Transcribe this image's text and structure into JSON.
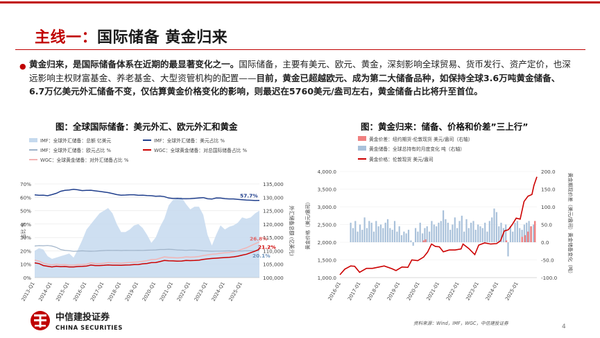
{
  "slide": {
    "title_accent": "主线一：",
    "title_rest": "国际储备  黄金归来",
    "page_number": "4",
    "brand_cn": "中信建投证券",
    "brand_en": "CHINA SECURITIES",
    "source_note": "资料来源：Wind，IMF，WGC，中信建投证券"
  },
  "bullet": {
    "bold1": "黄金归来，是国际储备体系在近期的最显著变化之一。",
    "normal1": "国际储备，主要有美元、欧元、黄金，深刻影响全球贸易、货币发行、资产定价，也深远影响主权财富基金、养老基金、大型资管机构的配置——",
    "bold2": "目前，黄金已超越欧元、成为第二大储备品种，如保持全球3.6万吨黄金储备、6.7万亿美元外汇储备不变，仅估算黄金价格变化的影响，则最迟在5760美元/盎司左右，黄金储备占比将升至首位。"
  },
  "chart_data": [
    {
      "type": "line",
      "title": "图：全球国际储备：美元外汇、欧元外汇和黄金",
      "legend": [
        "IMF：全球外汇储备：总额 亿美元",
        "IMF：全球外汇储备：美元占比 %",
        "IMF：全球外汇储备：欧元占比 %",
        "WGC：全球黄金储备：对总国际储备占比 %",
        "WGC：全球黄金储备：对外汇储备占比 %"
      ],
      "x_ticks": [
        "2013-Q1",
        "2014-Q1",
        "2015-Q1",
        "2016-Q1",
        "2017-Q1",
        "2018-Q1",
        "2019-Q1",
        "2020-Q1",
        "2021-Q1",
        "2022-Q1",
        "2023-Q1",
        "2024-Q1",
        "2025-Q1"
      ],
      "ylabel_left": "占比 %",
      "ylabel_right": "外汇储备总额 (亿美元)",
      "ylim_left": [
        0,
        70
      ],
      "ylim_right": [
        100000,
        135000
      ],
      "yticks_left": [
        "0%",
        "10%",
        "20%",
        "30%",
        "40%",
        "50%",
        "60%",
        "70%"
      ],
      "yticks_right": [
        "100,000",
        "105,000",
        "110,000",
        "115,000",
        "120,000",
        "125,000",
        "130,000",
        "135,000"
      ],
      "annotations": [
        "57.7%",
        "26.8%",
        "21.2%",
        "20.1%"
      ],
      "series": [
        {
          "name": "IMF：全球外汇储备：总额 亿美元",
          "axis": "right",
          "color": "#c5d9ee",
          "values": [
            110000,
            111000,
            110500,
            108000,
            107000,
            107500,
            108000,
            108500,
            109000,
            107500,
            110500,
            114000,
            118000,
            120000,
            122000,
            124000,
            125000,
            126000,
            124000,
            120000,
            117000,
            117000,
            118000,
            119500,
            120000,
            118500,
            116000,
            113000,
            115000,
            119000,
            122000,
            127000,
            129000,
            129500,
            130000,
            127500,
            125500,
            126500,
            126500,
            123500,
            116000,
            112000,
            116000,
            119500,
            118000,
            119000,
            119500,
            120500,
            122500,
            122000,
            122500,
            124000,
            125000
          ]
        },
        {
          "name": "IMF：全球外汇储备：美元占比 %",
          "axis": "left",
          "color": "#1f3e8c",
          "values": [
            61.8,
            61.5,
            61.6,
            61.2,
            62.0,
            63.0,
            64.5,
            65.2,
            65.5,
            66.0,
            65.6,
            65.0,
            65.2,
            65.3,
            64.8,
            64.4,
            64.0,
            63.5,
            62.8,
            62.0,
            61.6,
            61.7,
            61.9,
            61.9,
            61.5,
            61.6,
            61.3,
            61.2,
            60.8,
            60.9,
            60.5,
            59.5,
            59.1,
            59.2,
            59.0,
            58.9,
            59.0,
            59.2,
            59.5,
            59.8,
            58.9,
            58.7,
            59.5,
            59.4,
            59.0,
            58.8,
            58.8,
            58.5,
            58.2,
            57.9,
            57.8,
            57.6,
            57.7
          ]
        },
        {
          "name": "IMF：全球外汇储备：欧元占比 %",
          "axis": "left",
          "color": "#9fb3c9",
          "values": [
            23.6,
            23.9,
            23.8,
            24.0,
            23.6,
            22.6,
            21.0,
            20.4,
            20.1,
            19.6,
            19.8,
            20.0,
            19.8,
            19.7,
            19.8,
            20.0,
            20.2,
            20.4,
            20.3,
            20.4,
            20.2,
            20.4,
            20.3,
            20.3,
            20.4,
            20.3,
            20.5,
            20.6,
            20.7,
            21.0,
            21.0,
            21.2,
            21.0,
            20.7,
            20.6,
            20.4,
            20.6,
            20.6,
            20.3,
            20.0,
            19.9,
            19.7,
            19.8,
            19.8,
            19.9,
            20.0,
            19.9,
            19.8,
            19.9,
            20.1,
            20.0,
            20.1,
            20.1
          ]
        },
        {
          "name": "WGC：全球黄金储备：对总国际储备占比 %",
          "axis": "left",
          "color": "#cc0000",
          "values": [
            11.0,
            10.5,
            9.0,
            8.5,
            8.0,
            8.5,
            8.2,
            8.3,
            8.0,
            8.0,
            8.3,
            8.4,
            8.6,
            9.4,
            9.0,
            9.0,
            9.2,
            9.5,
            9.3,
            9.3,
            9.2,
            9.4,
            9.5,
            9.7,
            9.8,
            10.3,
            10.6,
            11.2,
            11.3,
            12.0,
            12.8,
            12.6,
            12.5,
            12.3,
            12.4,
            12.8,
            12.7,
            12.8,
            13.0,
            13.6,
            14.0,
            14.3,
            14.5,
            14.8,
            15.0,
            15.2,
            15.5,
            16.0,
            16.8,
            17.5,
            18.6,
            19.8,
            21.2
          ]
        },
        {
          "name": "WGC：全球黄金储备：对外汇储备占比 %",
          "axis": "left",
          "color": "#f2b4b4",
          "values": [
            13.0,
            12.4,
            10.8,
            10.0,
            9.5,
            10.0,
            9.6,
            9.7,
            9.3,
            9.3,
            9.7,
            9.8,
            10.0,
            11.0,
            10.6,
            10.5,
            10.8,
            11.2,
            11.0,
            11.0,
            10.8,
            11.1,
            11.3,
            11.5,
            11.7,
            12.2,
            12.7,
            13.5,
            13.6,
            14.5,
            15.5,
            15.2,
            15.0,
            14.8,
            15.0,
            15.5,
            15.3,
            15.4,
            15.8,
            16.5,
            17.0,
            17.4,
            17.7,
            18.2,
            18.5,
            18.8,
            19.3,
            20.0,
            21.2,
            22.3,
            23.8,
            25.3,
            26.8
          ]
        }
      ]
    },
    {
      "type": "bar",
      "title": "图：黄金归来：储备、价格和价差”三上行”",
      "legend": [
        "黄金价差：纽约期货-伦敦现货 美元/盎司（右轴）",
        "黄金储备：全球总持有的月度变化 吨（右轴）",
        "黄金价格：伦敦现货 美元/盎司"
      ],
      "x_ticks": [
        "2016-01",
        "2017-01",
        "2018-01",
        "2019-01",
        "2020-01",
        "2021-01",
        "2022-01",
        "2023-01",
        "2024-01",
        "2025-01"
      ],
      "ylabel_left": "黄金价格（美元/盎司）",
      "ylabel_right": "黄金期现价差（美元/盎司）黄金储备变化（吨）",
      "ylim_left": [
        1000,
        4000
      ],
      "ylim_right": [
        -100,
        200
      ],
      "yticks_left": [
        "1,000.0",
        "1,500.0",
        "2,000.0",
        "2,500.0",
        "3,000.0",
        "3,500.0",
        "4,000.0"
      ],
      "yticks_right": [
        "-100.0",
        "-50.0",
        "0.0",
        "50.0",
        "100.0",
        "150.0",
        "200.0"
      ],
      "price_series": {
        "name": "黄金价格：伦敦现货 美元/盎司",
        "color": "#cc0000",
        "x": [
          2015.95,
          2016.2,
          2016.5,
          2016.7,
          2016.95,
          2017.3,
          2017.6,
          2017.95,
          2018.2,
          2018.6,
          2018.8,
          2019.1,
          2019.4,
          2019.6,
          2019.9,
          2020.2,
          2020.4,
          2020.6,
          2020.8,
          2021.0,
          2021.2,
          2021.5,
          2021.8,
          2022.1,
          2022.2,
          2022.5,
          2022.8,
          2023.0,
          2023.3,
          2023.6,
          2023.9,
          2024.1,
          2024.3,
          2024.5,
          2024.7,
          2024.9,
          2025.1,
          2025.3,
          2025.5,
          2025.7,
          2025.8,
          2025.95
        ],
        "values": [
          1080,
          1240,
          1330,
          1320,
          1150,
          1260,
          1260,
          1300,
          1330,
          1250,
          1200,
          1300,
          1290,
          1500,
          1480,
          1580,
          1720,
          1950,
          1880,
          1870,
          1730,
          1780,
          1780,
          1810,
          1950,
          1820,
          1650,
          1920,
          1980,
          1950,
          1960,
          2040,
          2320,
          2350,
          2500,
          2680,
          2650,
          3150,
          3300,
          3350,
          3600,
          3850
        ]
      },
      "bar_series": [
        {
          "name": "黄金储备：全球总持有的月度变化 吨（右轴）",
          "color": "#a9c1da",
          "values": [
            55,
            40,
            60,
            30,
            50,
            35,
            70,
            40,
            60,
            55,
            30,
            60,
            45,
            50,
            40,
            55,
            65,
            40,
            35,
            60,
            30,
            45,
            20,
            30,
            25,
            35,
            5,
            -10,
            40,
            30,
            55,
            25,
            40,
            45,
            30,
            60,
            50,
            45,
            55,
            60,
            90,
            65,
            55,
            35,
            50,
            70,
            40,
            60,
            75,
            30,
            65,
            40,
            55,
            60,
            35,
            50,
            45,
            40,
            55,
            30,
            60,
            70,
            95,
            85,
            45,
            55,
            40,
            50,
            -40,
            45,
            30,
            55,
            60,
            40,
            35,
            50,
            55,
            60,
            45,
            50
          ]
        },
        {
          "name": "黄金价差：纽约期货-伦敦现货 美元/盎司（右轴）",
          "color": "#f08080",
          "values": [
            5,
            8,
            5,
            15,
            20,
            30,
            45,
            60
          ]
        }
      ]
    }
  ]
}
